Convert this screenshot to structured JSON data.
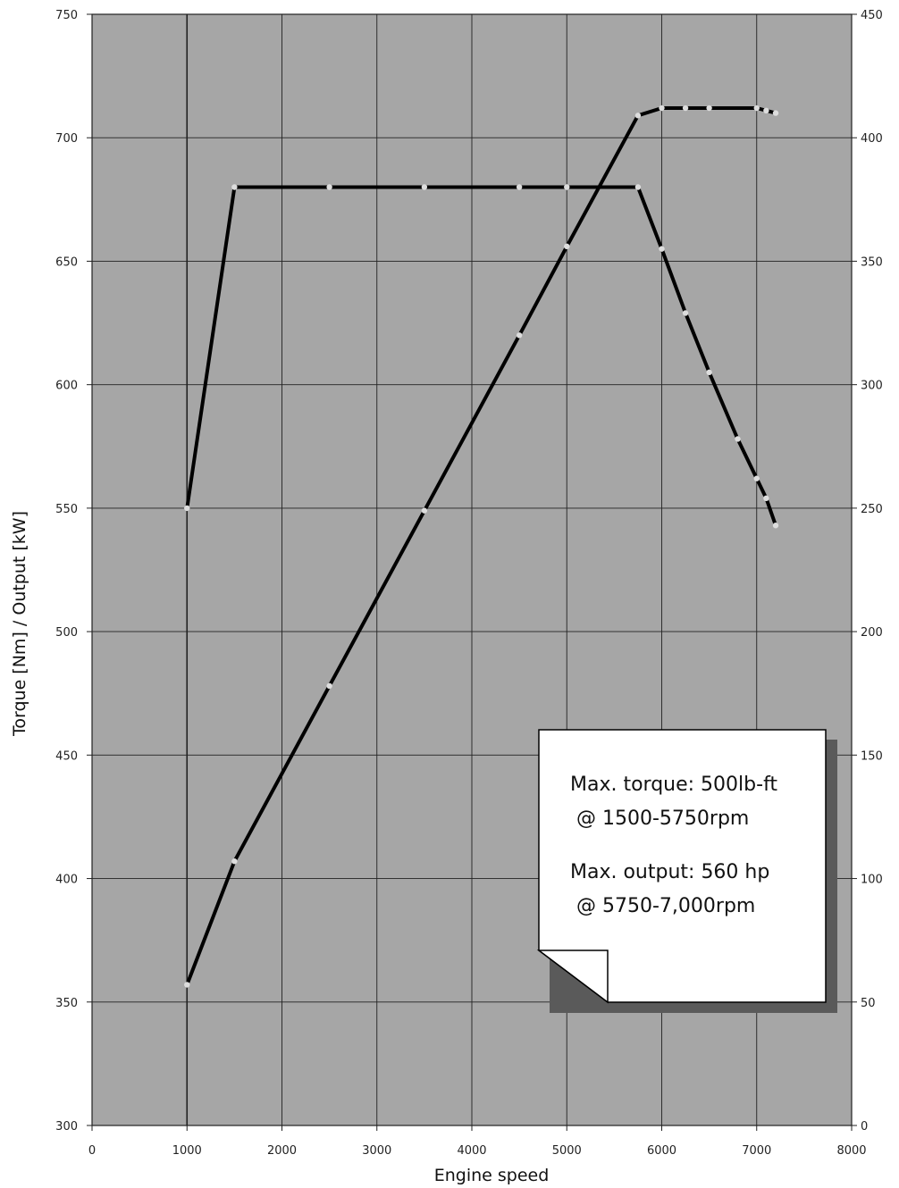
{
  "chart_data": {
    "type": "line",
    "title": "",
    "xlabel": "Engine speed",
    "ylabel": "Torque [Nm] / Output [kW]",
    "xlim": [
      0,
      8000
    ],
    "ylim_left": [
      300,
      750
    ],
    "ylim_right": [
      0,
      450
    ],
    "x_ticks": [
      0,
      1000,
      2000,
      3000,
      4000,
      5000,
      6000,
      7000,
      8000
    ],
    "y_ticks_left": [
      300,
      350,
      400,
      450,
      500,
      550,
      600,
      650,
      700,
      750
    ],
    "y_ticks_right": [
      0,
      50,
      100,
      150,
      200,
      250,
      300,
      350,
      400,
      450
    ],
    "grid": true,
    "plot_background": "#a6a6a6",
    "line_color": "#000000",
    "marker_color": "#dddddd",
    "series": [
      {
        "axis": "left",
        "x": [
          1000,
          1500,
          2500,
          3500,
          4500,
          5000,
          5750,
          6000,
          6250,
          6500,
          6800,
          7000,
          7100,
          7200
        ],
        "values": [
          550,
          680,
          680,
          680,
          680,
          680,
          680,
          655,
          629,
          605,
          578,
          562,
          554,
          543
        ]
      },
      {
        "axis": "right",
        "x": [
          1000,
          1500,
          2500,
          3500,
          4500,
          5000,
          5750,
          6000,
          6250,
          6500,
          7000,
          7100,
          7200
        ],
        "values": [
          57,
          107,
          178,
          249,
          320,
          356,
          409,
          412,
          412,
          412,
          412,
          411,
          410
        ]
      }
    ],
    "annotation": {
      "line1": "Max. torque: 500lb-ft",
      "line2": " @ 1500-5750rpm",
      "line3": "Max. output: 560 hp",
      "line4": " @ 5750-7,000rpm"
    }
  }
}
